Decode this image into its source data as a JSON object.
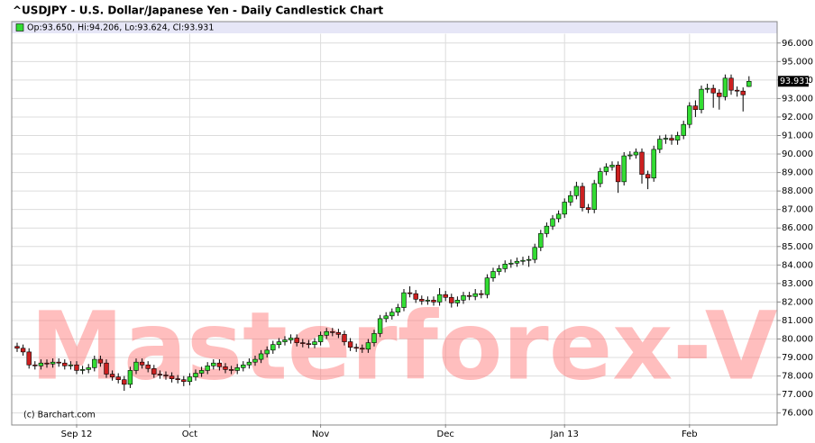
{
  "chart_data": {
    "type": "candlestick",
    "title": "^USDJPY - U.S. Dollar/Japanese Yen - Daily Candlestick Chart",
    "ohlc_label": "Op:93.650, Hi:94.206, Lo:93.624, Cl:93.931",
    "credit": "(c) Barchart.com",
    "watermark": "Masterforex-V",
    "up_color": "#33dd33",
    "down_color": "#cc2020",
    "grid": true,
    "ylim": [
      75.4,
      96.5
    ],
    "yticks": [
      {
        "value": 76,
        "label": "76.000"
      },
      {
        "value": 77,
        "label": "77.000"
      },
      {
        "value": 78,
        "label": "78.000"
      },
      {
        "value": 79,
        "label": "79.000"
      },
      {
        "value": 80,
        "label": "80.000"
      },
      {
        "value": 81,
        "label": "81.000"
      },
      {
        "value": 82,
        "label": "82.000"
      },
      {
        "value": 83,
        "label": "83.000"
      },
      {
        "value": 84,
        "label": "84.000"
      },
      {
        "value": 85,
        "label": "85.000"
      },
      {
        "value": 86,
        "label": "86.000"
      },
      {
        "value": 87,
        "label": "87.000"
      },
      {
        "value": 88,
        "label": "88.000"
      },
      {
        "value": 89,
        "label": "89.000"
      },
      {
        "value": 90,
        "label": "90.000"
      },
      {
        "value": 91,
        "label": "91.000"
      },
      {
        "value": 92,
        "label": "92.000"
      },
      {
        "value": 93,
        "label": "93.000"
      },
      {
        "value": 94,
        "label": "94.000"
      },
      {
        "value": 95,
        "label": "95.000"
      },
      {
        "value": 96,
        "label": "96.000"
      }
    ],
    "categories": [
      null,
      null,
      null,
      null,
      null,
      null,
      null,
      null,
      null,
      null,
      "Sep 12",
      null,
      null,
      null,
      null,
      null,
      null,
      null,
      null,
      null,
      null,
      null,
      null,
      null,
      null,
      null,
      null,
      null,
      null,
      "Oct",
      null,
      null,
      null,
      null,
      null,
      null,
      null,
      null,
      null,
      null,
      null,
      null,
      null,
      null,
      null,
      null,
      null,
      null,
      null,
      null,
      null,
      "Nov",
      null,
      null,
      null,
      null,
      null,
      null,
      null,
      null,
      null,
      null,
      null,
      null,
      null,
      null,
      null,
      null,
      null,
      null,
      null,
      null,
      "Dec",
      null,
      null,
      null,
      null,
      null,
      null,
      null,
      null,
      null,
      null,
      null,
      null,
      null,
      null,
      null,
      null,
      null,
      null,
      null,
      "Jan 13",
      null,
      null,
      null,
      null,
      null,
      null,
      null,
      null,
      null,
      null,
      null,
      null,
      null,
      null,
      null,
      null,
      null,
      null,
      null,
      null,
      "Feb",
      null,
      null,
      null,
      null,
      null,
      null,
      null,
      null,
      null,
      null
    ],
    "open": [
      79.6,
      79.5,
      79.3,
      78.6,
      78.55,
      78.7,
      78.65,
      78.75,
      78.7,
      78.55,
      78.6,
      78.3,
      78.35,
      78.45,
      78.9,
      78.7,
      78.1,
      77.95,
      77.8,
      77.55,
      78.3,
      78.75,
      78.6,
      78.4,
      78.1,
      78.05,
      78.0,
      77.85,
      77.8,
      77.7,
      77.95,
      78.15,
      78.3,
      78.55,
      78.7,
      78.5,
      78.35,
      78.3,
      78.45,
      78.6,
      78.75,
      78.9,
      79.2,
      79.4,
      79.7,
      79.85,
      79.95,
      80.05,
      79.8,
      79.75,
      79.7,
      79.85,
      80.2,
      80.4,
      80.35,
      80.25,
      79.85,
      79.55,
      79.5,
      79.45,
      79.8,
      80.3,
      81.1,
      81.25,
      81.45,
      81.7,
      82.5,
      82.45,
      82.15,
      82.05,
      82.1,
      82.0,
      82.4,
      82.25,
      81.95,
      82.1,
      82.35,
      82.3,
      82.45,
      82.4,
      83.3,
      83.65,
      83.8,
      84.05,
      84.1,
      84.2,
      84.25,
      84.3,
      84.95,
      85.7,
      86.1,
      86.5,
      86.75,
      87.4,
      87.75,
      88.25,
      87.1,
      87.0,
      88.4,
      89.05,
      89.3,
      89.4,
      88.5,
      89.9,
      89.95,
      90.1,
      88.9,
      88.7,
      90.25,
      90.8,
      90.85,
      90.75,
      91.0,
      91.6,
      92.6,
      92.4,
      93.5,
      93.55,
      93.3,
      93.1,
      94.1,
      93.45,
      93.4,
      93.65
    ],
    "high": [
      79.8,
      79.7,
      79.5,
      78.8,
      78.9,
      78.9,
      78.95,
      78.95,
      78.9,
      78.8,
      78.8,
      78.55,
      78.65,
      79.1,
      79.1,
      78.9,
      78.3,
      78.15,
      78.0,
      78.5,
      78.95,
      78.95,
      78.8,
      78.6,
      78.3,
      78.25,
      78.2,
      78.05,
      78.0,
      78.15,
      78.35,
      78.5,
      78.75,
      78.9,
      78.9,
      78.7,
      78.55,
      78.65,
      78.8,
      78.95,
      79.1,
      79.4,
      79.6,
      79.9,
      80.05,
      80.15,
      80.25,
      80.25,
      80.0,
      79.95,
      80.05,
      80.4,
      80.6,
      80.6,
      80.55,
      80.45,
      80.05,
      79.75,
      79.7,
      80.0,
      80.5,
      81.3,
      81.45,
      81.65,
      81.9,
      82.7,
      82.85,
      82.65,
      82.35,
      82.3,
      82.3,
      82.75,
      82.6,
      82.45,
      82.3,
      82.55,
      82.55,
      82.7,
      82.65,
      83.5,
      83.85,
      84.0,
      84.25,
      84.3,
      84.4,
      84.45,
      84.5,
      85.15,
      85.9,
      86.3,
      86.7,
      86.95,
      87.6,
      88.0,
      88.5,
      88.45,
      87.3,
      88.6,
      89.25,
      89.5,
      89.6,
      89.6,
      90.1,
      90.15,
      90.3,
      90.3,
      89.1,
      90.45,
      91.0,
      91.05,
      91.05,
      91.2,
      91.8,
      92.8,
      92.9,
      93.7,
      93.8,
      93.75,
      93.5,
      94.3,
      94.3,
      93.65,
      93.6,
      94.206
    ],
    "low": [
      79.3,
      79.1,
      78.4,
      78.35,
      78.35,
      78.45,
      78.45,
      78.5,
      78.35,
      78.35,
      78.1,
      78.1,
      78.15,
      78.25,
      78.5,
      77.9,
      77.75,
      77.6,
      77.2,
      77.35,
      78.1,
      78.4,
      78.2,
      77.9,
      77.85,
      77.8,
      77.65,
      77.6,
      77.45,
      77.5,
      77.75,
      77.95,
      78.1,
      78.35,
      78.3,
      78.15,
      78.1,
      78.1,
      78.25,
      78.4,
      78.55,
      78.7,
      79.0,
      79.2,
      79.5,
      79.65,
      79.75,
      79.6,
      79.55,
      79.5,
      79.5,
      79.65,
      80.0,
      80.15,
      80.05,
      79.65,
      79.35,
      79.3,
      79.25,
      79.25,
      79.6,
      80.1,
      80.9,
      81.05,
      81.25,
      81.5,
      82.25,
      81.95,
      81.85,
      81.85,
      81.8,
      81.8,
      82.05,
      81.7,
      81.75,
      81.9,
      82.1,
      82.1,
      82.2,
      82.2,
      83.1,
      83.45,
      83.6,
      83.85,
      83.9,
      84.0,
      83.9,
      84.1,
      84.75,
      85.5,
      85.9,
      86.3,
      86.55,
      87.2,
      87.55,
      86.9,
      86.8,
      86.8,
      88.2,
      88.85,
      89.1,
      87.9,
      88.3,
      89.7,
      89.75,
      88.4,
      88.1,
      88.5,
      90.05,
      90.55,
      90.5,
      90.5,
      90.8,
      91.4,
      92.0,
      92.2,
      93.3,
      92.5,
      92.4,
      92.9,
      93.2,
      93.1,
      92.3,
      93.624
    ],
    "close": [
      79.5,
      79.3,
      78.6,
      78.55,
      78.7,
      78.65,
      78.75,
      78.7,
      78.55,
      78.6,
      78.3,
      78.35,
      78.45,
      78.9,
      78.7,
      78.1,
      77.95,
      77.8,
      77.55,
      78.3,
      78.75,
      78.6,
      78.4,
      78.1,
      78.05,
      78.0,
      77.85,
      77.8,
      77.7,
      77.95,
      78.15,
      78.3,
      78.55,
      78.7,
      78.5,
      78.35,
      78.3,
      78.45,
      78.6,
      78.75,
      78.9,
      79.2,
      79.4,
      79.7,
      79.85,
      79.95,
      80.05,
      79.8,
      79.75,
      79.7,
      79.85,
      80.2,
      80.4,
      80.35,
      80.25,
      79.85,
      79.55,
      79.5,
      79.45,
      79.8,
      80.3,
      81.1,
      81.25,
      81.45,
      81.7,
      82.5,
      82.45,
      82.15,
      82.05,
      82.1,
      82.0,
      82.4,
      82.25,
      81.95,
      82.1,
      82.35,
      82.3,
      82.45,
      82.4,
      83.3,
      83.65,
      83.8,
      84.05,
      84.1,
      84.2,
      84.25,
      84.3,
      84.95,
      85.7,
      86.1,
      86.5,
      86.75,
      87.4,
      87.75,
      88.25,
      87.1,
      87.0,
      88.4,
      89.05,
      89.3,
      89.4,
      88.5,
      89.9,
      89.95,
      90.1,
      88.9,
      88.7,
      90.25,
      90.8,
      90.85,
      90.75,
      91.0,
      91.6,
      92.6,
      92.4,
      93.5,
      93.55,
      93.3,
      93.1,
      94.1,
      93.45,
      93.4,
      93.2,
      93.931
    ]
  }
}
